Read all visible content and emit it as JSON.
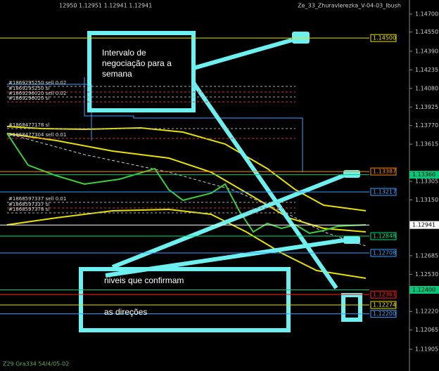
{
  "header": {
    "quote": "12950 1.12951 1.12941 1.12941",
    "indicator": "Ze_33_Zhuravlerezka_V-04-03_Ibush"
  },
  "price_axis": [
    {
      "value": 1.147,
      "label": "1.14700"
    },
    {
      "value": 1.1455,
      "label": "1.14550"
    },
    {
      "value": 1.1439,
      "label": "1.14390"
    },
    {
      "value": 1.14235,
      "label": "1.14235"
    },
    {
      "value": 1.1408,
      "label": "1.14080"
    },
    {
      "value": 1.13925,
      "label": "1.13925"
    },
    {
      "value": 1.1377,
      "label": "1.13770"
    },
    {
      "value": 1.13615,
      "label": "1.13615"
    },
    {
      "value": 1.13305,
      "label": "1.13305"
    },
    {
      "value": 1.1315,
      "label": "1.13150"
    },
    {
      "value": 1.12685,
      "label": "1.12685"
    },
    {
      "value": 1.1253,
      "label": "1.12530"
    },
    {
      "value": 1.1222,
      "label": "1.12220"
    },
    {
      "value": 1.12065,
      "label": "1.12065"
    },
    {
      "value": 1.11905,
      "label": "1.11905"
    }
  ],
  "levels": [
    {
      "value": 1.145,
      "label": "1.14500",
      "color": "#e8e000"
    },
    {
      "value": 1.13387,
      "label": "1.13387",
      "color": "#ff8c00"
    },
    {
      "value": 1.1336,
      "label": "1.13360",
      "color": "#00c878"
    },
    {
      "value": 1.13217,
      "label": "1.13217",
      "color": "#3aa0ff"
    },
    {
      "value": 1.12941,
      "label": "1.12941",
      "color": "#ffffff"
    },
    {
      "value": 1.12848,
      "label": "1.12848",
      "color": "#00e080"
    },
    {
      "value": 1.12708,
      "label": "1.12708",
      "color": "#3aa0ff"
    },
    {
      "value": 1.124,
      "label": "1.12400",
      "color": "#00c878"
    },
    {
      "value": 1.12361,
      "label": "1.12361",
      "color": "#ff2020"
    },
    {
      "value": 1.12274,
      "label": "1.12274",
      "color": "#e8e000"
    },
    {
      "value": 1.122,
      "label": "1.12200",
      "color": "#3aa0ff"
    }
  ],
  "orders": [
    "#1869295250 sell 0.02",
    "#1869295250 sl",
    "#1869296020 sell 0.02",
    "#1869296020 sl",
    "#1868477178 sl",
    "#1868477304 sell 0.01",
    "#1868597337 sell 0.01",
    "#1868597337 sl",
    "#1868597378 sl"
  ],
  "footer": "Z29 Gra334 54/4/05-02",
  "annotations": {
    "week_range": "Intervalo de negociação para a semana",
    "confirm_1": "niveis que confirmam",
    "confirm_2": "as direções"
  }
}
